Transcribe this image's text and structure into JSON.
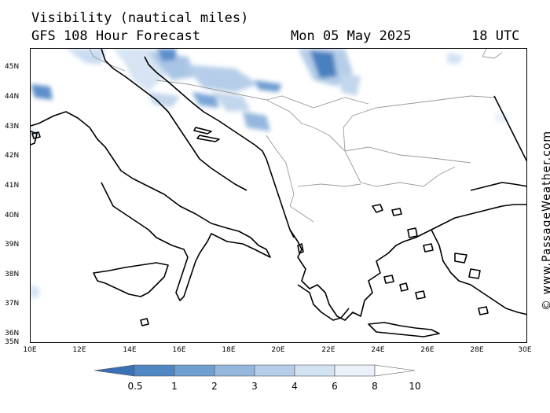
{
  "header": {
    "title": "Visibility (nautical miles)",
    "subtitle": "GFS 108 Hour Forecast",
    "date": "Mon 05 May 2025",
    "hour": "18 UTC"
  },
  "credit": "© www.PassageWeather.com",
  "axes": {
    "lat_labels": [
      "45N",
      "44N",
      "43N",
      "42N",
      "41N",
      "40N",
      "39N",
      "38N",
      "37N",
      "36N",
      "35N"
    ],
    "lon_labels": [
      "10E",
      "12E",
      "14E",
      "16E",
      "18E",
      "20E",
      "22E",
      "24E",
      "26E",
      "28E",
      "30E"
    ],
    "lat_range": [
      35,
      45.7
    ],
    "lon_range": [
      10,
      30
    ]
  },
  "colorbar": {
    "labels": [
      "0.5",
      "1",
      "2",
      "3",
      "4",
      "6",
      "8",
      "10"
    ],
    "colors": [
      "#3a70b4",
      "#4f86c4",
      "#6f9ed0",
      "#93b7dd",
      "#b5cde8",
      "#d3e2f2",
      "#eaf1f9",
      "#ffffff"
    ]
  }
}
